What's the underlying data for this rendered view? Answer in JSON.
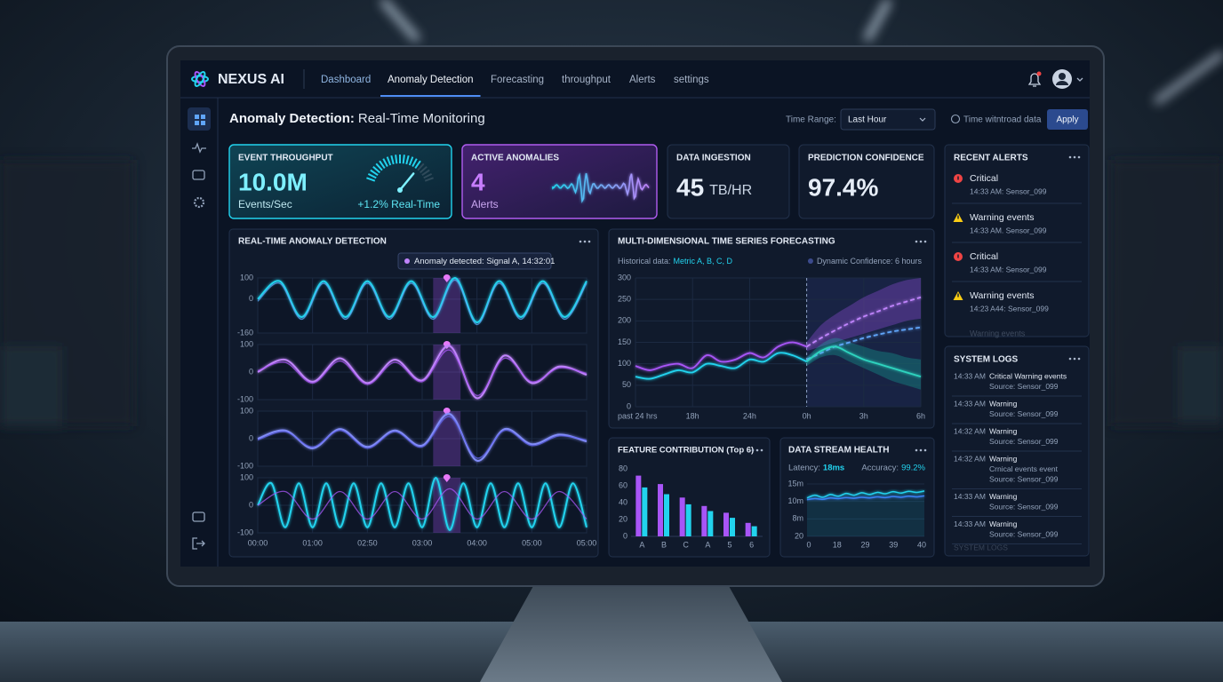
{
  "brand": "NEXUS AI",
  "nav": [
    "Dashboard",
    "Anomaly Detection",
    "Forecasting",
    "throughput",
    "Alerts",
    "settings"
  ],
  "active_nav": 1,
  "page_title": {
    "strong": "Anomaly Detection:",
    "rest": "Real-Time Monitoring"
  },
  "controls": {
    "time_range_label": "Time Range:",
    "time_range": "Last Hour",
    "toggle": "Time witntroad data",
    "apply": "Apply"
  },
  "kpis": [
    {
      "label": "EVENT THROUGHPUT",
      "value": "10.0M",
      "unit": "Events/Sec",
      "delta": "+1.2% Real-Time"
    },
    {
      "label": "ACTIVE ANOMALIES",
      "value": "4",
      "unit": "Alerts"
    },
    {
      "label": "DATA INGESTION",
      "value": "45",
      "unit": "TB/HR"
    },
    {
      "label": "PREDICTION CONFIDENCE",
      "value": "97.4%"
    }
  ],
  "recent_alerts": {
    "title": "RECENT ALERTS",
    "items": [
      {
        "icon": "critical",
        "title": "Critical",
        "detail": "14:33 AM: Sensor_099"
      },
      {
        "icon": "warning",
        "title": "Warning events",
        "detail": "14:33 AM. Sensor_099"
      },
      {
        "icon": "critical",
        "title": "Critical",
        "detail": "14:33 AM: Sensor_099"
      },
      {
        "icon": "warning",
        "title": "Warning events",
        "detail": "14:23 A44: Sensor_099"
      }
    ],
    "overflow": "Warning events"
  },
  "system_logs": {
    "title": "SYSTEM LOGS",
    "entries": [
      {
        "time": "14:33 AM",
        "lines": [
          "Critical Warning events",
          "Source: Sensor_099"
        ]
      },
      {
        "time": "14:33 AM",
        "lines": [
          "Warning",
          "Source: Sensor_099"
        ]
      },
      {
        "time": "14:32 AM",
        "lines": [
          "Warning",
          "Source: Sensor_099"
        ]
      },
      {
        "time": "14:32 AM",
        "lines": [
          "Warning",
          "Crnical events event",
          "Source: Sensor_099"
        ]
      },
      {
        "time": "14:33 AM",
        "lines": [
          "Warning",
          "Source: Sensor_099"
        ]
      },
      {
        "time": "14:33 AM",
        "lines": [
          "Warning",
          "Source: Sensor_099"
        ]
      }
    ],
    "overflow": "SYSTEM LOGS"
  },
  "chart_data": [
    {
      "type": "line",
      "title": "REAL-TIME ANOMALY DETECTION",
      "annotation": "Anomaly detected: Signal A, 14:32:01",
      "xlim": [
        0,
        6
      ],
      "xticks": [
        {
          "value": 0,
          "label": "00:00"
        },
        {
          "value": 1,
          "label": "01:00"
        },
        {
          "value": 2,
          "label": "02:50"
        },
        {
          "value": 3,
          "label": "03:00"
        },
        {
          "value": 4,
          "label": "04:00"
        },
        {
          "value": 5,
          "label": "05:00"
        },
        {
          "value": 6,
          "label": "05:00"
        }
      ],
      "anomaly_window": [
        3.2,
        3.7
      ],
      "grid": true,
      "panels": [
        {
          "ylim": [
            -160,
            100
          ],
          "yticks": [
            100,
            0,
            -160
          ],
          "series": [
            {
              "color": "#22d3ee",
              "x": [
                0,
                0.4,
                0.8,
                1.2,
                1.6,
                2,
                2.4,
                2.8,
                3.2,
                3.6,
                4,
                4.4,
                4.8,
                5.2,
                5.6,
                6
              ],
              "values": [
                0,
                85,
                -85,
                85,
                -85,
                85,
                -85,
                85,
                -85,
                100,
                -110,
                85,
                -85,
                85,
                -85,
                85
              ]
            },
            {
              "color": "#60a5fa",
              "x": [
                0,
                0.4,
                0.8,
                1.2,
                1.6,
                2,
                2.4,
                2.8,
                3.2,
                3.6,
                4,
                4.4,
                4.8,
                5.2,
                5.6,
                6
              ],
              "values": [
                -10,
                75,
                -95,
                75,
                -95,
                75,
                -95,
                75,
                -95,
                90,
                -120,
                75,
                -95,
                75,
                -95,
                75
              ]
            }
          ]
        },
        {
          "ylim": [
            -100,
            100
          ],
          "yticks": [
            100,
            0,
            -100
          ],
          "series": [
            {
              "color": "#c084fc",
              "x": [
                0,
                0.5,
                1,
                1.5,
                2,
                2.5,
                3,
                3.5,
                4,
                4.5,
                5,
                5.5,
                6
              ],
              "values": [
                0,
                45,
                -35,
                50,
                -40,
                45,
                -30,
                95,
                -95,
                60,
                -40,
                20,
                -10
              ]
            },
            {
              "color": "#a855f7",
              "x": [
                0,
                0.5,
                1,
                1.5,
                2,
                2.5,
                3,
                3.5,
                4,
                4.5,
                5,
                5.5,
                6
              ],
              "values": [
                5,
                35,
                -40,
                40,
                -45,
                35,
                -35,
                80,
                -85,
                50,
                -35,
                15,
                -5
              ]
            }
          ]
        },
        {
          "ylim": [
            -100,
            100
          ],
          "yticks": [
            100,
            0,
            -100
          ],
          "series": [
            {
              "color": "#818cf8",
              "x": [
                0,
                0.5,
                1,
                1.5,
                2,
                2.5,
                3,
                3.5,
                4,
                4.5,
                5,
                5.5,
                6
              ],
              "values": [
                0,
                30,
                -35,
                35,
                -30,
                30,
                -25,
                90,
                -80,
                35,
                -20,
                15,
                -10
              ]
            },
            {
              "color": "#6366f1",
              "x": [
                0,
                0.5,
                1,
                1.5,
                2,
                2.5,
                3,
                3.5,
                4,
                4.5,
                5,
                5.5,
                6
              ],
              "values": [
                -5,
                25,
                -30,
                30,
                -35,
                25,
                -30,
                80,
                -70,
                30,
                -25,
                10,
                -5
              ]
            }
          ]
        },
        {
          "ylim": [
            -100,
            100
          ],
          "yticks": [
            100,
            0,
            -100
          ],
          "series": [
            {
              "color": "#22d3ee",
              "x": [
                0,
                0.25,
                0.5,
                0.75,
                1,
                1.25,
                1.5,
                1.75,
                2,
                2.25,
                2.5,
                2.75,
                3,
                3.25,
                3.5,
                3.75,
                4,
                4.25,
                4.5,
                4.75,
                5,
                5.25,
                5.5,
                5.75,
                6
              ],
              "values": [
                0,
                80,
                -80,
                80,
                -80,
                80,
                -80,
                80,
                -80,
                80,
                -80,
                80,
                -80,
                100,
                -90,
                80,
                -80,
                80,
                -80,
                80,
                -80,
                80,
                -80,
                80,
                -80
              ]
            },
            {
              "color": "#a855f7",
              "x": [
                0,
                0.5,
                1,
                1.5,
                2,
                2.5,
                3,
                3.5,
                4,
                4.5,
                5,
                5.5,
                6
              ],
              "values": [
                0,
                50,
                -50,
                50,
                -50,
                50,
                -50,
                60,
                -50,
                50,
                -50,
                50,
                -50
              ]
            }
          ]
        }
      ]
    },
    {
      "type": "line",
      "title": "MULTI-DIMENSIONAL TIME SERIES FORECASTING",
      "subtitle_label": "Historical data:",
      "subtitle_value": "Metric A, B, C, D",
      "legend": "Dynamic Confidence: 6 hours",
      "x": [
        0,
        0.25,
        0.5,
        0.75,
        1,
        1.25,
        1.5,
        1.75,
        2,
        2.25,
        2.5,
        2.75,
        3,
        3.25,
        3.5,
        3.75,
        4,
        4.25,
        4.5,
        4.75,
        5
      ],
      "xlim": [
        0,
        5
      ],
      "xticks": [
        {
          "value": 0,
          "label": "past 24 hrs"
        },
        {
          "value": 1,
          "label": "18h"
        },
        {
          "value": 2,
          "label": "24h"
        },
        {
          "value": 3,
          "label": "0h"
        },
        {
          "value": 4,
          "label": "3h"
        },
        {
          "value": 5,
          "label": "6h"
        }
      ],
      "ylim": [
        0,
        300
      ],
      "yticks": [
        0,
        50,
        100,
        150,
        200,
        250,
        300
      ],
      "grid": true,
      "forecast_from": 3,
      "bands": [
        {
          "color": "#a855f7",
          "upper": [
            null,
            null,
            null,
            null,
            null,
            null,
            null,
            null,
            null,
            null,
            null,
            null,
            150,
            190,
            215,
            235,
            255,
            270,
            285,
            295,
            300
          ],
          "lower": [
            null,
            null,
            null,
            null,
            null,
            null,
            null,
            null,
            null,
            null,
            null,
            null,
            130,
            140,
            150,
            160,
            170,
            180,
            190,
            200,
            205
          ]
        },
        {
          "color": "#14b8a6",
          "upper": [
            null,
            null,
            null,
            null,
            null,
            null,
            null,
            null,
            null,
            null,
            null,
            null,
            115,
            145,
            160,
            150,
            140,
            130,
            125,
            115,
            110
          ],
          "lower": [
            null,
            null,
            null,
            null,
            null,
            null,
            null,
            null,
            null,
            null,
            null,
            null,
            95,
            115,
            120,
            105,
            90,
            75,
            60,
            50,
            40
          ]
        }
      ],
      "series": [
        {
          "color": "#a855f7",
          "values": [
            95,
            85,
            95,
            100,
            90,
            120,
            105,
            110,
            125,
            115,
            140,
            150,
            140,
            null,
            null,
            null,
            null,
            null,
            null,
            null,
            null
          ]
        },
        {
          "color": "#22d3ee",
          "values": [
            70,
            65,
            75,
            85,
            80,
            100,
            95,
            90,
            110,
            105,
            125,
            120,
            105,
            null,
            null,
            null,
            null,
            null,
            null,
            null,
            null
          ]
        },
        {
          "color": "#c084fc",
          "dashed": true,
          "values": [
            null,
            null,
            null,
            null,
            null,
            null,
            null,
            null,
            null,
            null,
            null,
            null,
            140,
            160,
            178,
            195,
            210,
            222,
            235,
            245,
            255
          ]
        },
        {
          "color": "#60a5fa",
          "dashed": true,
          "values": [
            null,
            null,
            null,
            null,
            null,
            null,
            null,
            null,
            null,
            null,
            null,
            null,
            110,
            125,
            140,
            150,
            160,
            168,
            175,
            180,
            185
          ]
        },
        {
          "color": "#2dd4bf",
          "values": [
            null,
            null,
            null,
            null,
            null,
            null,
            null,
            null,
            null,
            null,
            null,
            null,
            105,
            130,
            140,
            125,
            110,
            100,
            90,
            80,
            70
          ]
        }
      ]
    },
    {
      "type": "bar",
      "title": "FEATURE CONTRIBUTION (Top 6)",
      "categories": [
        "A",
        "B",
        "C",
        "A",
        "5",
        "6"
      ],
      "ylim": [
        0,
        80
      ],
      "yticks": [
        0,
        20,
        40,
        60,
        80
      ],
      "series": [
        {
          "color": "#a855f7",
          "values": [
            72,
            62,
            46,
            36,
            28,
            16
          ]
        },
        {
          "color": "#22d3ee",
          "values": [
            58,
            50,
            38,
            30,
            22,
            12
          ]
        }
      ]
    },
    {
      "type": "line",
      "title": "DATA STREAM HEALTH",
      "stats": [
        {
          "label": "Latency:",
          "value": "18ms"
        },
        {
          "label": "Accuracy:",
          "value": "99.2%"
        }
      ],
      "y_labels": [
        "15m",
        "10m",
        "8m",
        "20"
      ],
      "x_labels": [
        "0",
        "18",
        "29",
        "39",
        "40"
      ],
      "ylim": [
        0,
        15
      ],
      "series": [
        {
          "color": "#22d3ee",
          "values": [
            11,
            11.8,
            11.2,
            12,
            11.5,
            12.3,
            11.8,
            12.5,
            12,
            12.6,
            12.2,
            12.8,
            12.4,
            12.9,
            12.6,
            13
          ]
        },
        {
          "color": "#3b82f6",
          "values": [
            10.5,
            10.8,
            10.6,
            11,
            10.8,
            11.1,
            10.9,
            11.2,
            11,
            11.3,
            11.1,
            11.4,
            11.2,
            11.5,
            11.3,
            11.6
          ]
        }
      ]
    }
  ]
}
